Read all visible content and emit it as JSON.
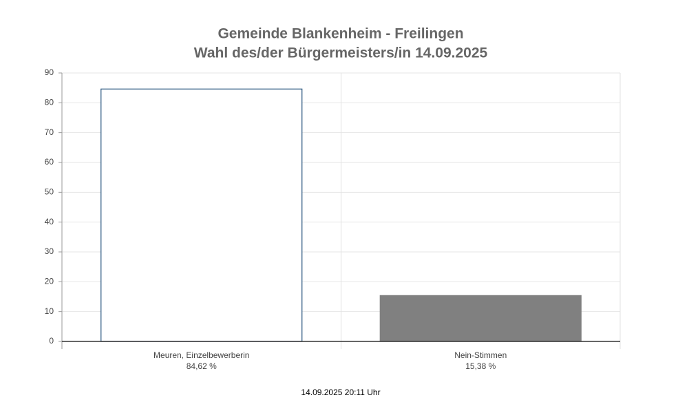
{
  "chart_data": {
    "type": "bar",
    "title": "Gemeinde Blankenheim - Freilingen",
    "subtitle": "Wahl des/der Bürgermeisters/in 14.09.2025",
    "categories": [
      "Meuren, Einzelbewerberin",
      "Nein-Stimmen"
    ],
    "values": [
      84.62,
      15.38
    ],
    "value_labels": [
      "84,62 %",
      "15,38 %"
    ],
    "colors": [
      "#ffffff",
      "#808080"
    ],
    "edgecolors": [
      "#1f4e79",
      "#808080"
    ],
    "ylim": [
      0,
      90
    ],
    "yticks": [
      0,
      10,
      20,
      30,
      40,
      50,
      60,
      70,
      80,
      90
    ],
    "grid": true,
    "footnote": "14.09.2025 20:11 Uhr"
  }
}
